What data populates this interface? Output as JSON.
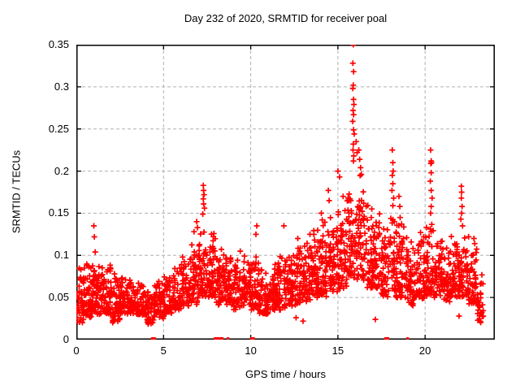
{
  "title": "Day 232 of 2020, SRMTID for receiver poal",
  "chart_data": {
    "type": "scatter",
    "title": "Day 232 of 2020, SRMTID for receiver poal",
    "xlabel": "GPS time / hours",
    "ylabel": "SRMTID / TECUs",
    "xlim": [
      0,
      24
    ],
    "ylim": [
      0,
      0.35
    ],
    "xticks": [
      0,
      5,
      10,
      15,
      20
    ],
    "xtick_labels": [
      "0",
      "5",
      "10",
      "15",
      "20"
    ],
    "yticks": [
      0,
      0.05,
      0.1,
      0.15,
      0.2,
      0.25,
      0.3,
      0.35
    ],
    "ytick_labels": [
      "0",
      "0.05",
      "0.1",
      "0.15",
      "0.2",
      "0.25",
      "0.3",
      "0.35"
    ],
    "grid": true,
    "grid_color": "#b0b0b0",
    "marker": "plus",
    "marker_color": "#ff0000",
    "seed": 42,
    "density_bins": [
      [
        0.0,
        0.5,
        52,
        0.02,
        0.095
      ],
      [
        0.5,
        1.0,
        52,
        0.025,
        0.09
      ],
      [
        1.0,
        1.5,
        52,
        0.03,
        0.098
      ],
      [
        1.5,
        2.0,
        50,
        0.03,
        0.09
      ],
      [
        2.0,
        2.5,
        50,
        0.02,
        0.08
      ],
      [
        2.5,
        3.0,
        50,
        0.03,
        0.075
      ],
      [
        3.0,
        3.5,
        48,
        0.03,
        0.072
      ],
      [
        3.5,
        4.0,
        48,
        0.028,
        0.07
      ],
      [
        4.0,
        4.5,
        48,
        0.018,
        0.065
      ],
      [
        4.5,
        5.0,
        48,
        0.025,
        0.07
      ],
      [
        5.0,
        5.5,
        46,
        0.03,
        0.08
      ],
      [
        5.5,
        6.0,
        46,
        0.035,
        0.085
      ],
      [
        6.0,
        6.5,
        48,
        0.04,
        0.1
      ],
      [
        6.5,
        7.0,
        50,
        0.04,
        0.115
      ],
      [
        7.0,
        7.5,
        55,
        0.05,
        0.135
      ],
      [
        7.5,
        8.0,
        58,
        0.05,
        0.13
      ],
      [
        8.0,
        8.5,
        52,
        0.04,
        0.115
      ],
      [
        8.5,
        9.0,
        50,
        0.04,
        0.1
      ],
      [
        9.0,
        9.5,
        48,
        0.035,
        0.095
      ],
      [
        9.5,
        10.0,
        48,
        0.04,
        0.1
      ],
      [
        10.0,
        10.5,
        50,
        0.035,
        0.1
      ],
      [
        10.5,
        11.0,
        48,
        0.03,
        0.085
      ],
      [
        11.0,
        11.5,
        48,
        0.035,
        0.09
      ],
      [
        11.5,
        12.0,
        48,
        0.035,
        0.1
      ],
      [
        12.0,
        12.5,
        50,
        0.04,
        0.1
      ],
      [
        12.5,
        13.0,
        50,
        0.04,
        0.11
      ],
      [
        13.0,
        13.5,
        52,
        0.045,
        0.115
      ],
      [
        13.5,
        14.0,
        52,
        0.05,
        0.13
      ],
      [
        14.0,
        14.5,
        52,
        0.05,
        0.14
      ],
      [
        14.5,
        15.0,
        52,
        0.055,
        0.15
      ],
      [
        15.0,
        15.5,
        52,
        0.06,
        0.16
      ],
      [
        15.5,
        16.0,
        56,
        0.07,
        0.2
      ],
      [
        16.0,
        16.5,
        56,
        0.07,
        0.2
      ],
      [
        16.5,
        17.0,
        52,
        0.06,
        0.17
      ],
      [
        17.0,
        17.5,
        50,
        0.06,
        0.155
      ],
      [
        17.5,
        18.0,
        48,
        0.05,
        0.14
      ],
      [
        18.0,
        18.5,
        50,
        0.05,
        0.15
      ],
      [
        18.5,
        19.0,
        48,
        0.05,
        0.145
      ],
      [
        19.0,
        19.5,
        48,
        0.04,
        0.12
      ],
      [
        19.5,
        20.0,
        48,
        0.045,
        0.13
      ],
      [
        20.0,
        20.5,
        52,
        0.05,
        0.145
      ],
      [
        20.5,
        21.0,
        48,
        0.05,
        0.12
      ],
      [
        21.0,
        21.5,
        48,
        0.045,
        0.115
      ],
      [
        21.5,
        22.0,
        50,
        0.05,
        0.125
      ],
      [
        22.0,
        22.5,
        52,
        0.05,
        0.13
      ],
      [
        22.5,
        23.0,
        50,
        0.04,
        0.11
      ],
      [
        23.0,
        23.35,
        28,
        0.02,
        0.08
      ]
    ],
    "outliers": [
      [
        1.0,
        0.135
      ],
      [
        1.03,
        0.122
      ],
      [
        1.08,
        0.104
      ],
      [
        6.75,
        0.128
      ],
      [
        6.9,
        0.14
      ],
      [
        6.95,
        0.133
      ],
      [
        7.28,
        0.183
      ],
      [
        7.3,
        0.177
      ],
      [
        7.32,
        0.172
      ],
      [
        7.28,
        0.167
      ],
      [
        7.3,
        0.161
      ],
      [
        7.35,
        0.156
      ],
      [
        7.25,
        0.149
      ],
      [
        9.4,
        0.105
      ],
      [
        10.3,
        0.125
      ],
      [
        10.35,
        0.135
      ],
      [
        11.9,
        0.135
      ],
      [
        12.6,
        0.026
      ],
      [
        12.7,
        0.12
      ],
      [
        13.0,
        0.022
      ],
      [
        13.4,
        0.125
      ],
      [
        14.05,
        0.15
      ],
      [
        14.1,
        0.142
      ],
      [
        14.45,
        0.177
      ],
      [
        14.5,
        0.165
      ],
      [
        15.0,
        0.2
      ],
      [
        15.1,
        0.193
      ],
      [
        15.3,
        0.17
      ],
      [
        15.88,
        0.35
      ],
      [
        15.86,
        0.328
      ],
      [
        15.9,
        0.318
      ],
      [
        15.88,
        0.302
      ],
      [
        15.86,
        0.298
      ],
      [
        15.9,
        0.285
      ],
      [
        15.92,
        0.279
      ],
      [
        15.87,
        0.272
      ],
      [
        15.9,
        0.267
      ],
      [
        15.85,
        0.259
      ],
      [
        15.9,
        0.249
      ],
      [
        15.94,
        0.244
      ],
      [
        15.88,
        0.232
      ],
      [
        15.87,
        0.225
      ],
      [
        15.91,
        0.218
      ],
      [
        15.89,
        0.212
      ],
      [
        16.05,
        0.235
      ],
      [
        16.1,
        0.222
      ],
      [
        16.2,
        0.225
      ],
      [
        16.25,
        0.214
      ],
      [
        16.3,
        0.204
      ],
      [
        16.35,
        0.196
      ],
      [
        17.15,
        0.024
      ],
      [
        18.12,
        0.225
      ],
      [
        18.15,
        0.21
      ],
      [
        18.17,
        0.2
      ],
      [
        18.12,
        0.195
      ],
      [
        18.15,
        0.185
      ],
      [
        18.1,
        0.177
      ],
      [
        18.2,
        0.168
      ],
      [
        18.15,
        0.159
      ],
      [
        18.5,
        0.17
      ],
      [
        18.55,
        0.158
      ],
      [
        20.32,
        0.225
      ],
      [
        20.35,
        0.212
      ],
      [
        20.33,
        0.209
      ],
      [
        20.37,
        0.21
      ],
      [
        20.35,
        0.198
      ],
      [
        20.3,
        0.188
      ],
      [
        20.35,
        0.177
      ],
      [
        20.4,
        0.168
      ],
      [
        20.35,
        0.158
      ],
      [
        20.32,
        0.15
      ],
      [
        21.95,
        0.028
      ],
      [
        22.08,
        0.182
      ],
      [
        22.1,
        0.175
      ],
      [
        22.08,
        0.168
      ],
      [
        22.12,
        0.158
      ],
      [
        22.1,
        0.15
      ],
      [
        22.05,
        0.143
      ],
      [
        22.15,
        0.135
      ],
      [
        22.8,
        0.12
      ],
      [
        22.85,
        0.114
      ]
    ],
    "zero_markers": [
      {
        "x": 4.42,
        "wide": true
      },
      {
        "x": 8.02,
        "wide": true
      },
      {
        "x": 8.3,
        "wide": true
      },
      {
        "x": 8.7,
        "wide": false
      },
      {
        "x": 10.1,
        "wide": true
      },
      {
        "x": 17.8,
        "wide": true
      },
      {
        "x": 19.0,
        "wide": false
      }
    ]
  }
}
